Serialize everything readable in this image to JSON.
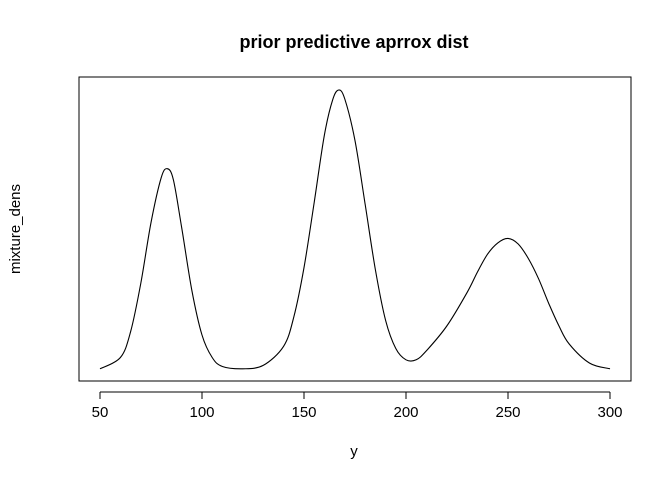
{
  "chart_data": {
    "type": "line",
    "title": "prior predictive aprrox dist",
    "xlabel": "y",
    "ylabel": "mixture_dens",
    "xlim": [
      40,
      305
    ],
    "x_ticks": [
      50,
      100,
      150,
      200,
      250,
      300
    ],
    "x_tick_labels": [
      "50",
      "100",
      "150",
      "200",
      "250",
      "300"
    ],
    "y_ticks_shown": false,
    "grid": false,
    "legend": "none",
    "line_color": "#000000",
    "series": [
      {
        "x": [
          50,
          60,
          65,
          70,
          75,
          80,
          83,
          86,
          90,
          95,
          100,
          105,
          110,
          120,
          130,
          140,
          145,
          150,
          155,
          160,
          164,
          167,
          170,
          175,
          180,
          185,
          190,
          195,
          200,
          205,
          210,
          220,
          230,
          235,
          240,
          245,
          250,
          255,
          260,
          265,
          270,
          275,
          280,
          290,
          300
        ],
        "y": [
          0.0002,
          0.0012,
          0.0035,
          0.0078,
          0.0132,
          0.0172,
          0.018,
          0.017,
          0.0128,
          0.0072,
          0.0032,
          0.0012,
          0.0004,
          0.0002,
          0.0005,
          0.0022,
          0.0048,
          0.0092,
          0.015,
          0.021,
          0.0241,
          0.025,
          0.0242,
          0.0205,
          0.0148,
          0.009,
          0.0045,
          0.002,
          0.001,
          0.001,
          0.0018,
          0.004,
          0.007,
          0.0088,
          0.0104,
          0.0114,
          0.0118,
          0.0113,
          0.01,
          0.0082,
          0.006,
          0.004,
          0.0024,
          0.0007,
          0.0002
        ]
      }
    ]
  }
}
